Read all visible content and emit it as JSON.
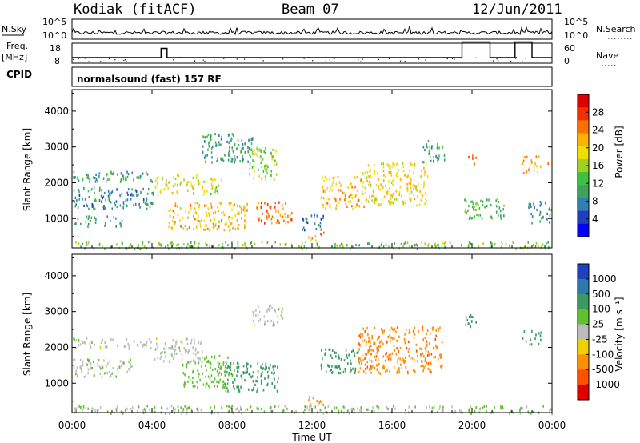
{
  "header": {
    "station": "Kodiak (fitACF)",
    "beam": "Beam 07",
    "date": "12/Jun/2011"
  },
  "status_panel": {
    "nsky_label": "N.Sky",
    "nsearch_label": "N.Search",
    "noise_ticks": [
      "10^5",
      "10^0"
    ],
    "noise_ticks_right": [
      "10^5",
      "10^0"
    ],
    "freq_label": "Freq.",
    "freq_unit": "[MHz]",
    "freq_ticks": [
      "18",
      "8"
    ],
    "freq_range": [
      8,
      18
    ],
    "nave_label": "Nave",
    "nave_ticks": [
      "60",
      "0"
    ],
    "nave_range": [
      0,
      60
    ],
    "cpid_label": "CPID",
    "cpid_text": "normalsound (fast) 157 RF",
    "freq_steps": [
      {
        "start": 0.0,
        "end": 4.45,
        "freq": 10.8
      },
      {
        "start": 4.45,
        "end": 4.75,
        "freq": 15.4
      },
      {
        "start": 4.75,
        "end": 19.5,
        "freq": 10.8
      },
      {
        "start": 19.5,
        "end": 20.9,
        "freq": 18.6
      },
      {
        "start": 20.9,
        "end": 22.15,
        "freq": 10.8
      },
      {
        "start": 22.15,
        "end": 23.0,
        "freq": 18.6
      },
      {
        "start": 23.0,
        "end": 24.0,
        "freq": 10.8
      }
    ]
  },
  "power_panel": {
    "ylabel": "Slant Range [km]",
    "yticks": [
      "4000",
      "3000",
      "2000",
      "1000"
    ],
    "cbar_label": "Power [dB]",
    "cbar_ticks": [
      "28",
      "24",
      "20",
      "16",
      "12",
      "8",
      "4"
    ],
    "cbar_colors": [
      "#0000ff",
      "#1f3fc0",
      "#2f7fb0",
      "#3fa060",
      "#40c040",
      "#a0d020",
      "#f0e000",
      "#ffb000",
      "#ff7000",
      "#f03000",
      "#e00000"
    ]
  },
  "velocity_panel": {
    "ylabel": "Slant Range [km]",
    "yticks": [
      "4000",
      "3000",
      "2000",
      "1000"
    ],
    "cbar_label": "Velocity [m s⁻¹]",
    "cbar_ticks": [
      "1000",
      "500",
      "100",
      "25",
      "-25",
      "-100",
      "-500",
      "-1000"
    ],
    "cbar_colors": [
      "#2040c0",
      "#2a7ab0",
      "#3a9a60",
      "#60c030",
      "#bcbcbc",
      "#f0d000",
      "#ff9000",
      "#ff5000",
      "#e00000"
    ]
  },
  "x_axis": {
    "xlabel": "Time UT",
    "ticks": [
      "00:00",
      "04:00",
      "08:00",
      "12:00",
      "16:00",
      "20:00",
      "00:00"
    ],
    "range_hours": [
      0,
      24
    ]
  },
  "chart_data": {
    "type": "heatmap",
    "title": "Kodiak (fitACF)",
    "subtitle": "Beam 07 12/Jun/2011",
    "xlabel": "Time UT",
    "ylabel": "Slant Range [km]",
    "xlim_hours": [
      0,
      24
    ],
    "ylim_km": [
      180,
      4600
    ],
    "panels": [
      {
        "name": "Power",
        "units": "dB",
        "range": [
          0,
          32
        ],
        "regions": [
          {
            "t0": 0.0,
            "t1": 4.1,
            "r0": 2050,
            "r1": 2350,
            "v": 10
          },
          {
            "t0": 0.0,
            "t1": 4.1,
            "r0": 1300,
            "r1": 1900,
            "v": 8
          },
          {
            "t0": 0.0,
            "t1": 2.5,
            "r0": 800,
            "r1": 1100,
            "v": 9
          },
          {
            "t0": 4.1,
            "t1": 7.5,
            "r0": 1700,
            "r1": 2250,
            "v": 18
          },
          {
            "t0": 4.8,
            "t1": 8.8,
            "r0": 700,
            "r1": 1500,
            "v": 21
          },
          {
            "t0": 6.5,
            "t1": 9.0,
            "r0": 2600,
            "r1": 3400,
            "v": 10
          },
          {
            "t0": 8.8,
            "t1": 10.2,
            "r0": 2100,
            "r1": 3000,
            "v": 16
          },
          {
            "t0": 9.2,
            "t1": 11.0,
            "r0": 900,
            "r1": 1500,
            "v": 26
          },
          {
            "t0": 11.8,
            "t1": 12.6,
            "r0": 400,
            "r1": 650,
            "v": 24
          },
          {
            "t0": 11.5,
            "t1": 12.6,
            "r0": 700,
            "r1": 1200,
            "v": 6
          },
          {
            "t0": 12.4,
            "t1": 14.6,
            "r0": 1300,
            "r1": 2200,
            "v": 22
          },
          {
            "t0": 14.5,
            "t1": 17.8,
            "r0": 1400,
            "r1": 2600,
            "v": 20
          },
          {
            "t0": 17.5,
            "t1": 18.6,
            "r0": 2600,
            "r1": 3200,
            "v": 10
          },
          {
            "t0": 19.8,
            "t1": 20.2,
            "r0": 2550,
            "r1": 2850,
            "v": 26
          },
          {
            "t0": 19.6,
            "t1": 21.6,
            "r0": 1000,
            "r1": 1600,
            "v": 12
          },
          {
            "t0": 22.5,
            "t1": 23.8,
            "r0": 2300,
            "r1": 2800,
            "v": 22
          },
          {
            "t0": 22.8,
            "t1": 24.0,
            "r0": 900,
            "r1": 1500,
            "v": 8
          },
          {
            "t0": 0.0,
            "t1": 24.0,
            "r0": 180,
            "r1": 380,
            "v": 14
          }
        ]
      },
      {
        "name": "Velocity",
        "units": "m s-1",
        "range": [
          -1000,
          1000
        ],
        "regions": [
          {
            "t0": 0.0,
            "t1": 4.1,
            "r0": 2000,
            "r1": 2300,
            "v": 0
          },
          {
            "t0": 0.0,
            "t1": 3.0,
            "r0": 1200,
            "r1": 1700,
            "v": 10
          },
          {
            "t0": 4.1,
            "t1": 6.5,
            "r0": 1600,
            "r1": 2300,
            "v": 0
          },
          {
            "t0": 5.5,
            "t1": 8.0,
            "r0": 900,
            "r1": 1800,
            "v": 60
          },
          {
            "t0": 7.6,
            "t1": 10.3,
            "r0": 800,
            "r1": 1600,
            "v": 250
          },
          {
            "t0": 9.0,
            "t1": 10.5,
            "r0": 2600,
            "r1": 3200,
            "v": 0
          },
          {
            "t0": 12.4,
            "t1": 14.3,
            "r0": 1300,
            "r1": 2000,
            "v": 300
          },
          {
            "t0": 14.3,
            "t1": 18.5,
            "r0": 1300,
            "r1": 2600,
            "v": -400
          },
          {
            "t0": 19.6,
            "t1": 20.2,
            "r0": 2500,
            "r1": 3000,
            "v": 300
          },
          {
            "t0": 22.5,
            "t1": 23.5,
            "r0": 2100,
            "r1": 2500,
            "v": 300
          },
          {
            "t0": 11.8,
            "t1": 12.6,
            "r0": 400,
            "r1": 650,
            "v": -200
          },
          {
            "t0": 0.0,
            "t1": 24.0,
            "r0": 180,
            "r1": 400,
            "v": 30
          }
        ]
      }
    ]
  }
}
